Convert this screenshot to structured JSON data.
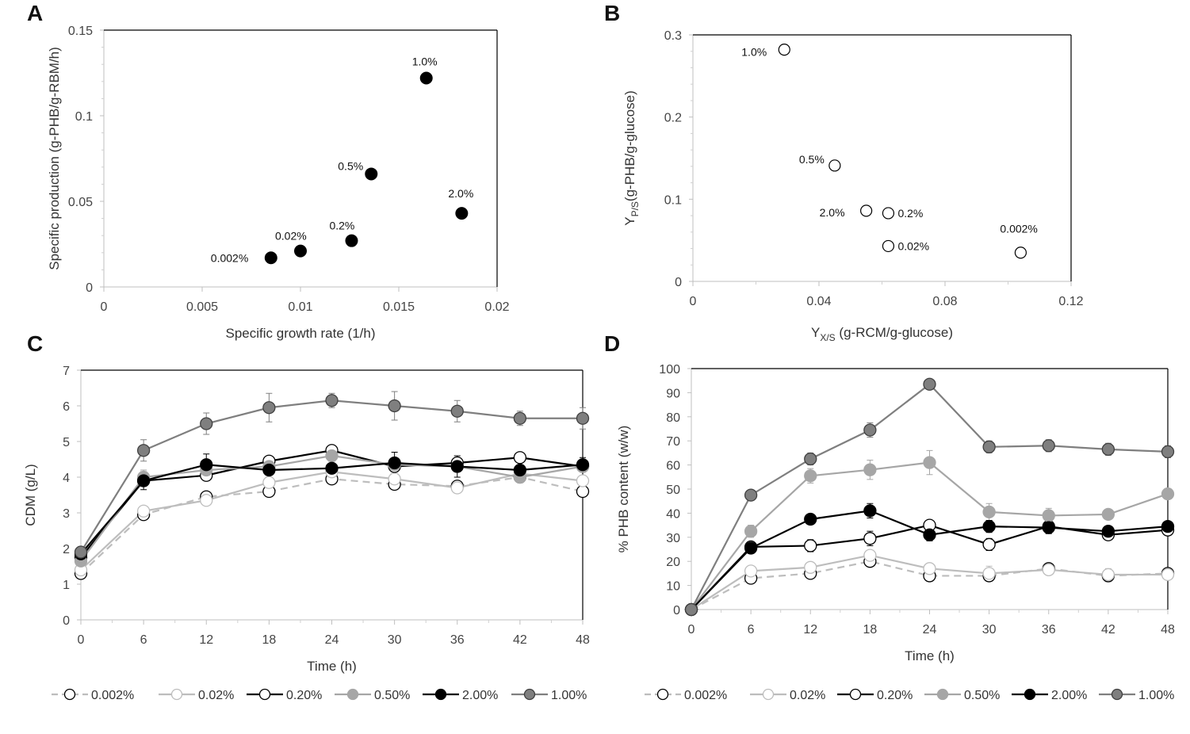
{
  "chart_data": [
    {
      "panel": "A",
      "type": "scatter",
      "xlabel": "Specific growth rate (1/h)",
      "ylabel": "Specific production (g-PHB/g-RBM/h)",
      "xlim": [
        0,
        0.02
      ],
      "ylim": [
        0,
        0.15
      ],
      "x_ticks": [
        "0",
        "0.005",
        "0.01",
        "0.015",
        "0.02"
      ],
      "y_ticks": [
        "0",
        "0.05",
        "0.1",
        "0.15"
      ],
      "points": [
        {
          "label": "0.002%",
          "x": 0.0085,
          "y": 0.017
        },
        {
          "label": "0.02%",
          "x": 0.01,
          "y": 0.021
        },
        {
          "label": "0.2%",
          "x": 0.0126,
          "y": 0.027
        },
        {
          "label": "0.5%",
          "x": 0.0136,
          "y": 0.066
        },
        {
          "label": "1.0%",
          "x": 0.0164,
          "y": 0.122
        },
        {
          "label": "2.0%",
          "x": 0.0182,
          "y": 0.043
        }
      ]
    },
    {
      "panel": "B",
      "type": "scatter",
      "xlabel_main": "Y",
      "xlabel_sub": "X/S",
      "xlabel_rest": " (g-RCM/g-glucose)",
      "ylabel_main": "Y",
      "ylabel_sub": "P/S",
      "ylabel_rest": "(g-PHB/g-glucose)",
      "xlim": [
        0,
        0.12
      ],
      "ylim": [
        0,
        0.3
      ],
      "x_ticks": [
        "0",
        "0.04",
        "0.08",
        "0.12"
      ],
      "y_ticks": [
        "0",
        "0.1",
        "0.2",
        "0.3"
      ],
      "points": [
        {
          "label": "1.0%",
          "x": 0.029,
          "y": 0.282
        },
        {
          "label": "0.5%",
          "x": 0.045,
          "y": 0.141
        },
        {
          "label": "2.0%",
          "x": 0.055,
          "y": 0.086
        },
        {
          "label": "0.2%",
          "x": 0.062,
          "y": 0.083
        },
        {
          "label": "0.02%",
          "x": 0.062,
          "y": 0.043
        },
        {
          "label": "0.002%",
          "x": 0.104,
          "y": 0.035
        }
      ]
    },
    {
      "panel": "C",
      "type": "line",
      "xlabel": "Time (h)",
      "ylabel": "CDM (g/L)",
      "x": [
        0,
        6,
        12,
        18,
        24,
        30,
        36,
        42,
        48
      ],
      "xlim": [
        0,
        48
      ],
      "ylim": [
        0,
        7
      ],
      "x_ticks": [
        "0",
        "6",
        "12",
        "18",
        "24",
        "30",
        "36",
        "42",
        "48"
      ],
      "y_ticks": [
        "0",
        "1",
        "2",
        "3",
        "4",
        "5",
        "6",
        "7"
      ],
      "series": [
        {
          "name": "0.002%",
          "values": [
            1.3,
            2.95,
            3.45,
            3.6,
            3.95,
            3.8,
            3.75,
            4.0,
            3.6
          ],
          "errors": [
            0.1,
            0.1,
            0.1,
            0.1,
            0.1,
            0.1,
            0.1,
            0.1,
            0.1
          ]
        },
        {
          "name": "0.02%",
          "values": [
            1.4,
            3.05,
            3.35,
            3.85,
            4.15,
            3.95,
            3.7,
            4.1,
            3.9
          ],
          "errors": [
            0.1,
            0.1,
            0.1,
            0.1,
            0.1,
            0.1,
            0.1,
            0.1,
            0.1
          ]
        },
        {
          "name": "0.20%",
          "values": [
            1.75,
            3.9,
            4.05,
            4.45,
            4.75,
            4.3,
            4.4,
            4.55,
            4.3
          ],
          "errors": [
            0.1,
            0.15,
            0.15,
            0.1,
            0.1,
            0.15,
            0.1,
            0.1,
            0.1
          ]
        },
        {
          "name": "0.50%",
          "values": [
            1.65,
            4.0,
            4.2,
            4.3,
            4.6,
            4.35,
            4.3,
            4.0,
            4.3
          ],
          "errors": [
            0.15,
            0.2,
            0.15,
            0.15,
            0.15,
            0.15,
            0.15,
            0.15,
            0.15
          ]
        },
        {
          "name": "2.00%",
          "values": [
            1.85,
            3.9,
            4.35,
            4.2,
            4.25,
            4.4,
            4.3,
            4.2,
            4.35
          ],
          "errors": [
            0.15,
            0.25,
            0.3,
            0.2,
            0.2,
            0.3,
            0.3,
            0.2,
            0.2
          ]
        },
        {
          "name": "1.00%",
          "values": [
            1.9,
            4.75,
            5.5,
            5.95,
            6.15,
            6.0,
            5.85,
            5.65,
            5.65
          ],
          "errors": [
            0.15,
            0.3,
            0.3,
            0.4,
            0.2,
            0.4,
            0.3,
            0.2,
            0.3
          ]
        }
      ]
    },
    {
      "panel": "D",
      "type": "line",
      "xlabel": "Time (h)",
      "ylabel": "% PHB content (w/w)",
      "x": [
        0,
        6,
        12,
        18,
        24,
        30,
        36,
        42,
        48
      ],
      "xlim": [
        0,
        48
      ],
      "ylim": [
        0,
        100
      ],
      "x_ticks": [
        "0",
        "6",
        "12",
        "18",
        "24",
        "30",
        "36",
        "42",
        "48"
      ],
      "y_ticks": [
        "0",
        "10",
        "20",
        "30",
        "40",
        "50",
        "60",
        "70",
        "80",
        "90",
        "100"
      ],
      "series": [
        {
          "name": "0.002%",
          "values": [
            0,
            13,
            15,
            20,
            14,
            14,
            17,
            14,
            15
          ],
          "errors": [
            0,
            1.5,
            1.5,
            2,
            1.5,
            1.5,
            1.5,
            2.5,
            1.5
          ]
        },
        {
          "name": "0.02%",
          "values": [
            0,
            16,
            17.5,
            22.5,
            17,
            15,
            16.5,
            14.5,
            14.5
          ],
          "errors": [
            0,
            1.5,
            1.5,
            2,
            1.5,
            3,
            1.5,
            2.5,
            1.5
          ]
        },
        {
          "name": "0.20%",
          "values": [
            0,
            26,
            26.5,
            29.5,
            35,
            27,
            34.5,
            31,
            33
          ],
          "errors": [
            0,
            2,
            2.5,
            3,
            2,
            2.5,
            2,
            1.5,
            1.5
          ]
        },
        {
          "name": "0.50%",
          "values": [
            0,
            32.5,
            55.5,
            58,
            61,
            40.5,
            39,
            39.5,
            48
          ],
          "errors": [
            0,
            2.5,
            3,
            4,
            5,
            3.5,
            3,
            2,
            2
          ]
        },
        {
          "name": "2.00%",
          "values": [
            0,
            25.5,
            37.5,
            41,
            31,
            34.5,
            34,
            32.5,
            34.5
          ],
          "errors": [
            0,
            2,
            2,
            3,
            2.5,
            2.5,
            2.5,
            2,
            2
          ]
        },
        {
          "name": "1.00%",
          "values": [
            0,
            47.5,
            62.5,
            74.5,
            93.5,
            67.5,
            68,
            66.5,
            65.5
          ],
          "errors": [
            0,
            1.5,
            2.5,
            3,
            2,
            2.5,
            2.5,
            2.5,
            2.5
          ]
        }
      ]
    }
  ],
  "legend": [
    {
      "label": "0.002%",
      "color": "#bdbdbd",
      "dashed": true,
      "fill": "#ffffff",
      "stroke": "#000000"
    },
    {
      "label": "0.02%",
      "color": "#bdbdbd",
      "dashed": false,
      "fill": "#ffffff",
      "stroke": "#bdbdbd"
    },
    {
      "label": "0.20%",
      "color": "#000000",
      "dashed": false,
      "fill": "#ffffff",
      "stroke": "#000000"
    },
    {
      "label": "0.50%",
      "color": "#a6a6a6",
      "dashed": false,
      "fill": "#a6a6a6",
      "stroke": "#a6a6a6"
    },
    {
      "label": "2.00%",
      "color": "#000000",
      "dashed": false,
      "fill": "#000000",
      "stroke": "#000000"
    },
    {
      "label": "1.00%",
      "color": "#7f7f7f",
      "dashed": false,
      "fill": "#7f7f7f",
      "stroke": "#404040"
    }
  ],
  "panel_labels": [
    "A",
    "B",
    "C",
    "D"
  ]
}
